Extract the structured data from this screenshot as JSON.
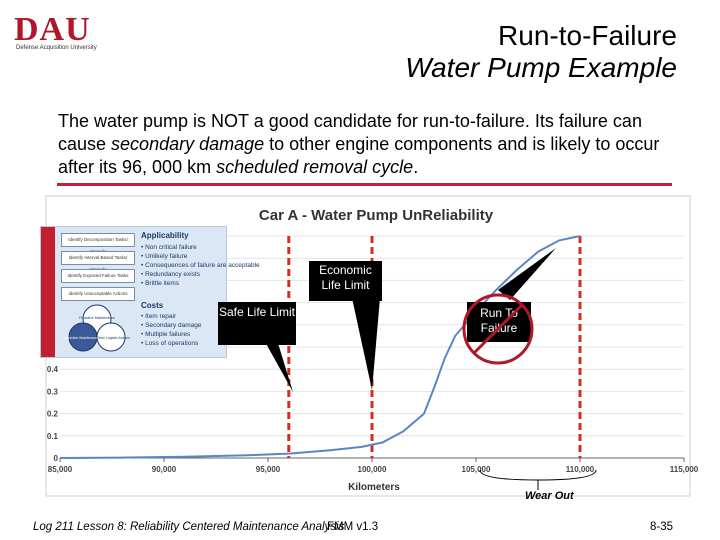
{
  "logo": {
    "text": "DAU",
    "subtext": "Defense Acquisition University"
  },
  "title": {
    "line1": "Run-to-Failure",
    "line2": "Water Pump Example"
  },
  "intro": {
    "p1": "The water pump is NOT a good candidate for run-to-failure. Its failure can cause ",
    "em1": "secondary damage",
    "p2": " to other engine components and is likely to occur after its 96, 000 km ",
    "em2": "scheduled removal cycle",
    "p3": "."
  },
  "inset": {
    "applicability_title": "Applicability",
    "applicability_items": [
      "• Non critical failure",
      "• Unlikely failure",
      "• Consequences of failure are acceptable",
      "• Redundancy exists",
      "• Brittle items"
    ],
    "costs_title": "Costs",
    "costs_items": [
      "• Item repair",
      "• Secondary damage",
      "• Multiple failures",
      "• Loss of operations"
    ],
    "boxes": [
      "Identify Decomposition Tasks/ Intervals",
      "Identify Interval-Based Tasks/ Intervals",
      "Identify Exposed Failure Tasks",
      "Identify Unacceptable Actions"
    ],
    "circle_labels": [
      "Proactive Maintenance",
      "Corrective Maintenance",
      "Other Logistic Actions"
    ]
  },
  "callouts": {
    "economic": "Economic Life Limit",
    "safe": "Safe Life Limit",
    "run": "Run To Failure"
  },
  "wear_out": "Wear Out",
  "footer": {
    "left": "Log 211 Lesson 8: Reliability Centered Maintenance Analysis",
    "overlap": "FMM v1.3",
    "page": "8-35"
  },
  "colors": {
    "accent": "#c0203a",
    "curve": "#5b86c5",
    "limit": "#d32f1e"
  },
  "chart_data": {
    "type": "line",
    "title": "Car A - Water Pump UnReliability",
    "xlabel": "Kilometers",
    "ylabel": "",
    "x_ticks": [
      "85,000",
      "90,000",
      "95,000",
      "100,000",
      "105,000",
      "110,000",
      "115,000"
    ],
    "y_ticks": [
      "0",
      "0.1",
      "0.2",
      "0.3",
      "0.4"
    ],
    "xlim": [
      85000,
      115000
    ],
    "ylim": [
      0,
      1.0
    ],
    "series": [
      {
        "values": [
          [
            85000,
            0.0
          ],
          [
            88000,
            0.002
          ],
          [
            91000,
            0.006
          ],
          [
            94000,
            0.012
          ],
          [
            96000,
            0.02
          ],
          [
            98000,
            0.035
          ],
          [
            99500,
            0.05
          ],
          [
            100500,
            0.07
          ],
          [
            101500,
            0.12
          ],
          [
            102500,
            0.2
          ],
          [
            103000,
            0.32
          ],
          [
            103500,
            0.45
          ],
          [
            104000,
            0.55
          ],
          [
            105000,
            0.66
          ],
          [
            106000,
            0.76
          ],
          [
            107000,
            0.85
          ],
          [
            108000,
            0.93
          ],
          [
            109000,
            0.98
          ],
          [
            110000,
            1.0
          ]
        ]
      }
    ],
    "vertical_lines": [
      96000,
      100000,
      110000
    ]
  }
}
